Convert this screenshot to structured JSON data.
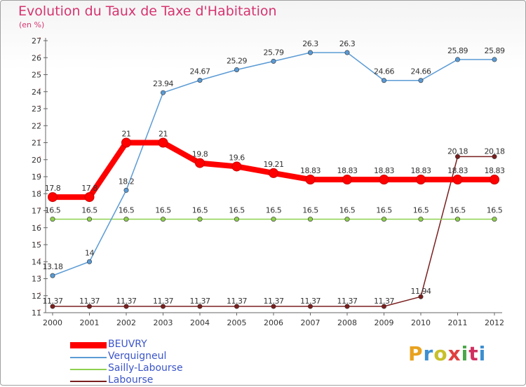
{
  "header": {
    "title": "Evolution du Taux de Taxe d'Habitation",
    "subtitle": "(en %)"
  },
  "logo": {
    "text": "Proxiti",
    "colors": [
      "#e8a21e",
      "#3c8fd0",
      "#c8c02a",
      "#e04040",
      "#4aa64a",
      "#d03060",
      "#3c8fd0"
    ]
  },
  "chart_data": {
    "type": "line",
    "title": "Evolution du Taux de Taxe d'Habitation",
    "ylabel": "(en %)",
    "x": [
      2000,
      2001,
      2002,
      2003,
      2004,
      2005,
      2006,
      2007,
      2008,
      2009,
      2010,
      2011,
      2012
    ],
    "ylim": [
      11,
      27
    ],
    "yticks": [
      11,
      12,
      13,
      14,
      15,
      16,
      17,
      18,
      19,
      20,
      21,
      22,
      23,
      24,
      25,
      26,
      27
    ],
    "grid": false,
    "legend_position": "bottom-left",
    "series": [
      {
        "name": "BEUVRY",
        "color": "#ff0000",
        "emphasis": true,
        "values": [
          17.8,
          17.8,
          21,
          21,
          19.8,
          19.6,
          19.21,
          18.83,
          18.83,
          18.83,
          18.83,
          18.83,
          18.83
        ],
        "labels": [
          "17.8",
          "17.8",
          "21",
          "21",
          "19.8",
          "19.6",
          "19.21",
          "18.83",
          "18.83",
          "18.83",
          "18.83",
          "18.83",
          "18.83"
        ]
      },
      {
        "name": "Verquigneul",
        "color": "#5b9bd5",
        "values": [
          13.18,
          14,
          18.2,
          23.94,
          24.67,
          25.29,
          25.79,
          26.3,
          26.3,
          24.66,
          24.66,
          25.89,
          25.89
        ],
        "labels": [
          "13.18",
          "14",
          "18.2",
          "23.94",
          "24.67",
          "25.29",
          "25.79",
          "26.3",
          "26.3",
          "24.66",
          "24.66",
          "25.89",
          "25.89"
        ]
      },
      {
        "name": "Sailly-Labourse",
        "color": "#8fd14f",
        "values": [
          16.5,
          16.5,
          16.5,
          16.5,
          16.5,
          16.5,
          16.5,
          16.5,
          16.5,
          16.5,
          16.5,
          16.5,
          16.5
        ],
        "labels": [
          "16.5",
          "16.5",
          "16.5",
          "16.5",
          "16.5",
          "16.5",
          "16.5",
          "16.5",
          "16.5",
          "16.5",
          "16.5",
          "16.5",
          "16.5"
        ]
      },
      {
        "name": "Labourse",
        "color": "#7a1f1f",
        "values": [
          11.37,
          11.37,
          11.37,
          11.37,
          11.37,
          11.37,
          11.37,
          11.37,
          11.37,
          11.37,
          11.94,
          20.18,
          20.18
        ],
        "labels": [
          "11.37",
          "11.37",
          "11.37",
          "11.37",
          "11.37",
          "11.37",
          "11.37",
          "11.37",
          "11.37",
          "11.37",
          "11.94",
          "20.18",
          "20.18"
        ]
      }
    ]
  }
}
